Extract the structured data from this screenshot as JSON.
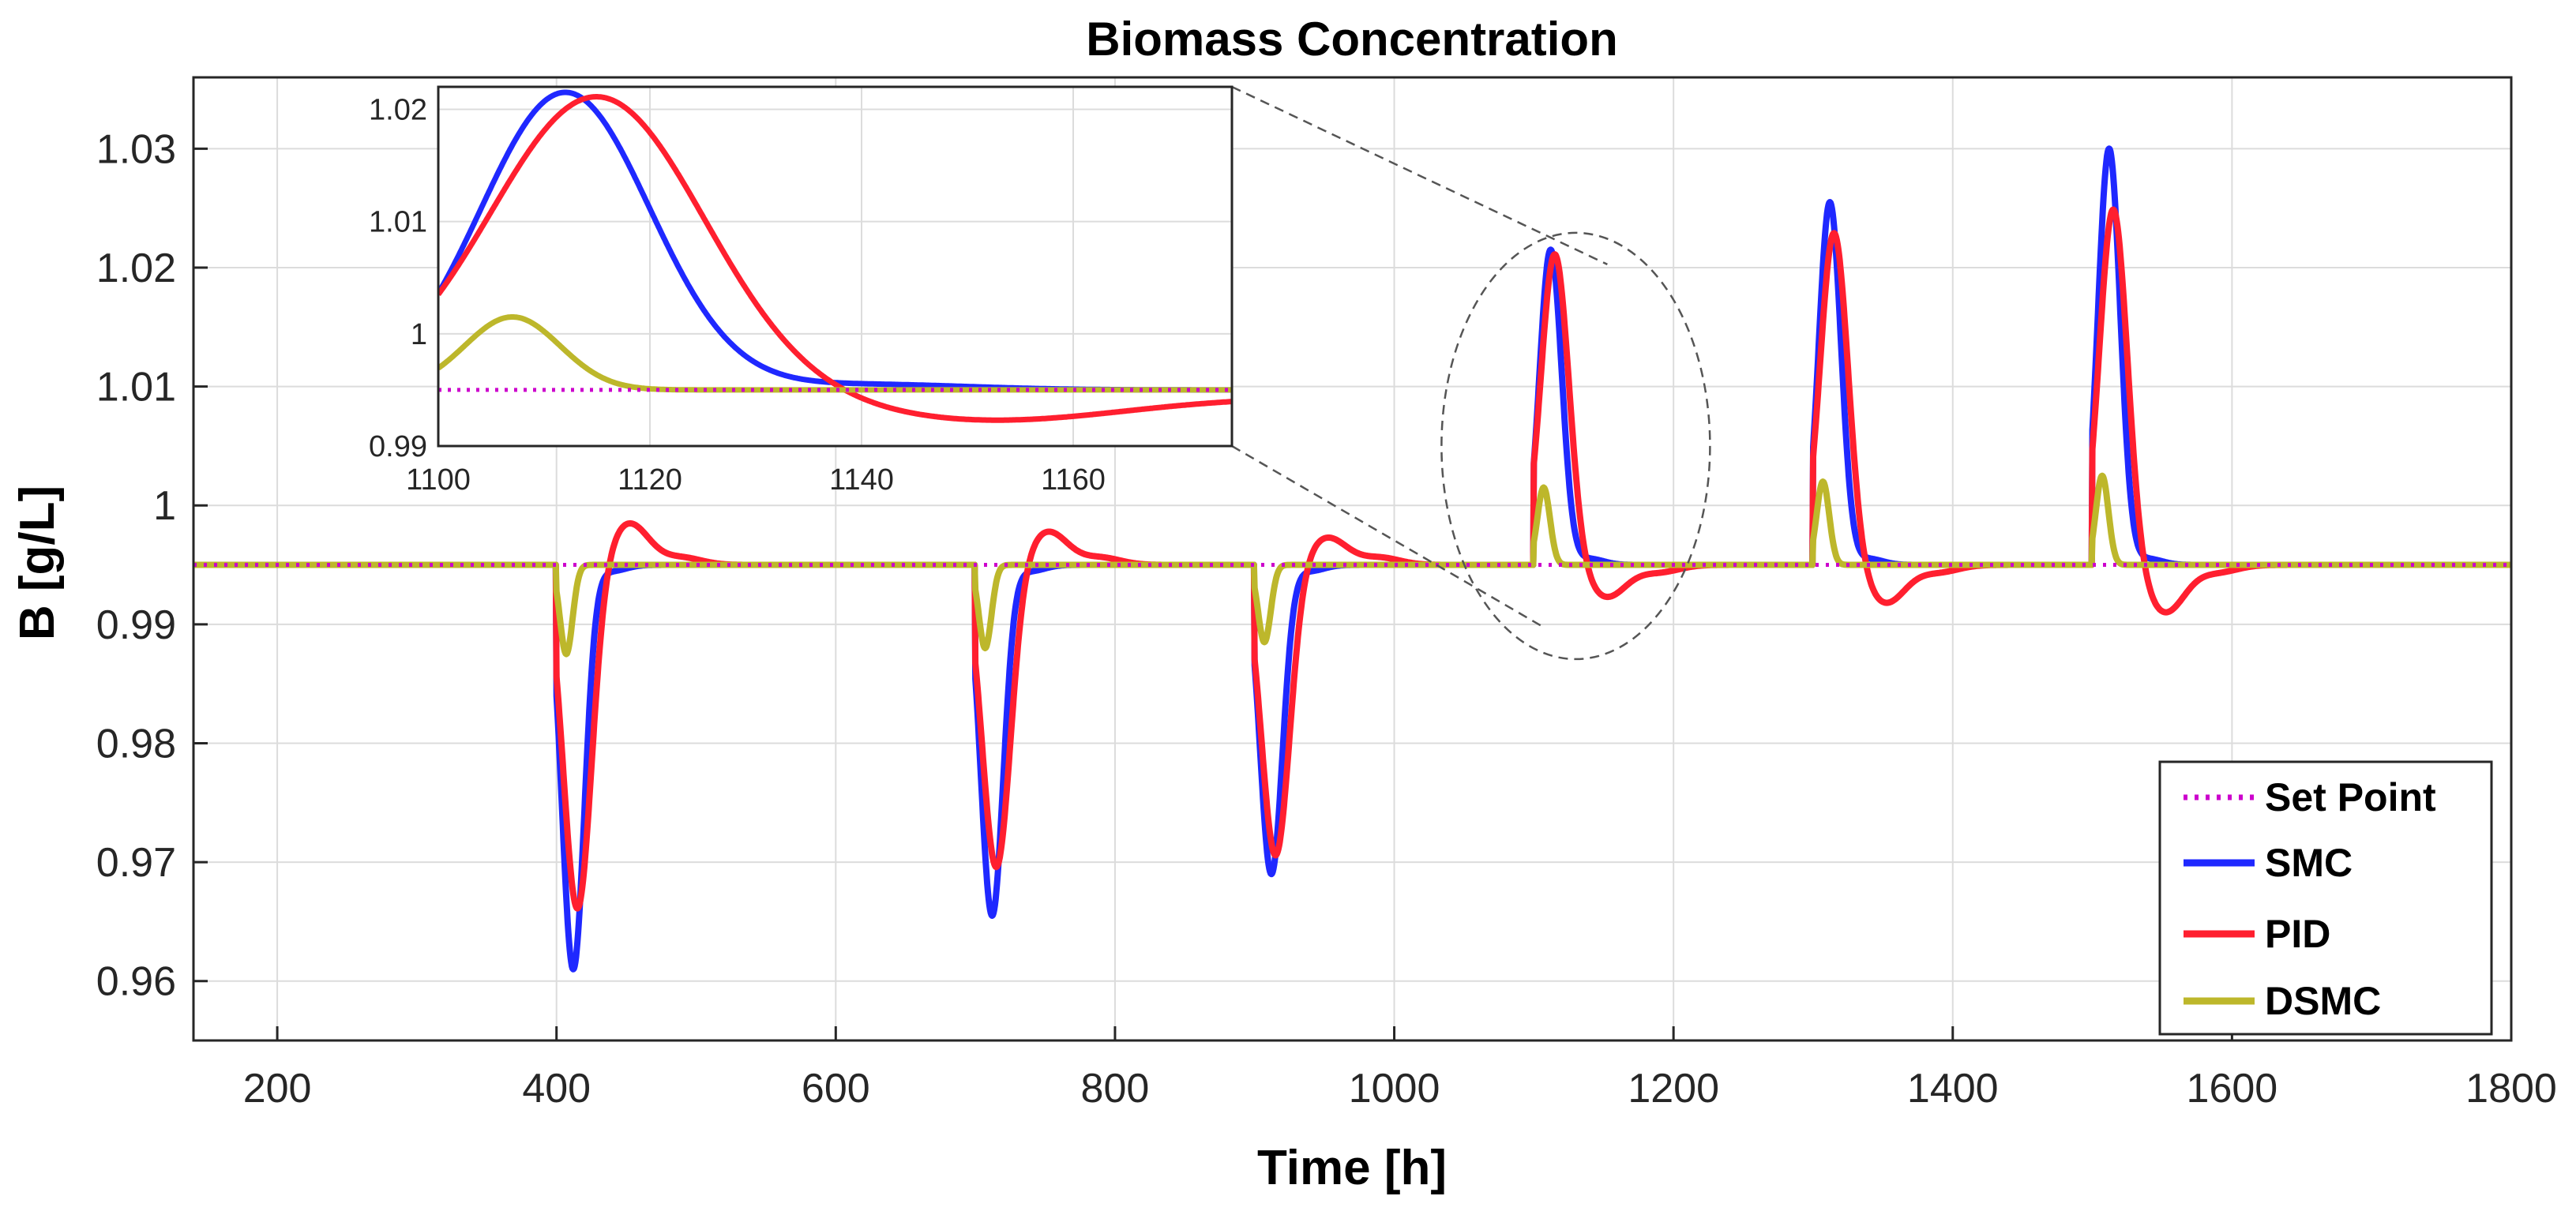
{
  "chart_data": {
    "type": "line",
    "title": "Biomass Concentration",
    "xlabel": "Time [h]",
    "ylabel": "B [g/L]",
    "xlim": [
      140,
      1800
    ],
    "ylim": [
      0.955,
      1.036
    ],
    "xticks": [
      200,
      400,
      600,
      800,
      1000,
      1200,
      1400,
      1600,
      1800
    ],
    "xtick_labels": [
      "200",
      "400",
      "600",
      "800",
      "1000",
      "1200",
      "1400",
      "1600",
      "1800"
    ],
    "yticks": [
      0.96,
      0.97,
      0.98,
      0.99,
      1.0,
      1.01,
      1.02,
      1.03
    ],
    "ytick_labels": [
      "0.96",
      "0.97",
      "0.98",
      "0.99",
      "1",
      "1.01",
      "1.02",
      "1.03"
    ],
    "grid": true,
    "legend_position": "bottom-right",
    "set_point": 0.995,
    "disturbances": [
      {
        "t": 400,
        "direction": "down",
        "peaks": {
          "SMC": 0.961,
          "PID": 0.966,
          "DSMC": 0.9875
        },
        "pid_overshoot": 0.9985
      },
      {
        "t": 700,
        "direction": "down",
        "peaks": {
          "SMC": 0.9655,
          "PID": 0.9695,
          "DSMC": 0.988
        },
        "pid_overshoot": 0.9978
      },
      {
        "t": 900,
        "direction": "down",
        "peaks": {
          "SMC": 0.969,
          "PID": 0.9705,
          "DSMC": 0.9885
        },
        "pid_overshoot": 0.9973
      },
      {
        "t": 1100,
        "direction": "up",
        "peaks": {
          "SMC": 1.0215,
          "PID": 1.0212,
          "DSMC": 1.0015
        },
        "pid_overshoot": 0.9923
      },
      {
        "t": 1300,
        "direction": "up",
        "peaks": {
          "SMC": 1.0255,
          "PID": 1.023,
          "DSMC": 1.002
        },
        "pid_overshoot": 0.9918
      },
      {
        "t": 1500,
        "direction": "up",
        "peaks": {
          "SMC": 1.03,
          "PID": 1.025,
          "DSMC": 1.0025
        },
        "pid_overshoot": 0.991
      }
    ],
    "series": [
      {
        "name": "Set Point",
        "color": "#cc00cc",
        "style": "dotted"
      },
      {
        "name": "SMC",
        "color": "#1f28ff",
        "style": "solid"
      },
      {
        "name": "PID",
        "color": "#ff1f2f",
        "style": "solid"
      },
      {
        "name": "DSMC",
        "color": "#bdb72b",
        "style": "solid"
      }
    ],
    "inset": {
      "xlim": [
        1100,
        1175
      ],
      "ylim": [
        0.99,
        1.022
      ],
      "xticks": [
        1100,
        1120,
        1140,
        1160
      ],
      "xtick_labels": [
        "1100",
        "1120",
        "1140",
        "1160"
      ],
      "yticks": [
        0.99,
        1.0,
        1.01,
        1.02
      ],
      "ytick_labels": [
        "0.99",
        "1",
        "1.01",
        "1.02"
      ],
      "zoom_center": [
        1130,
        1.005
      ]
    }
  },
  "legend": {
    "set_point": "Set Point",
    "smc": "SMC",
    "pid": "PID",
    "dsmc": "DSMC"
  }
}
